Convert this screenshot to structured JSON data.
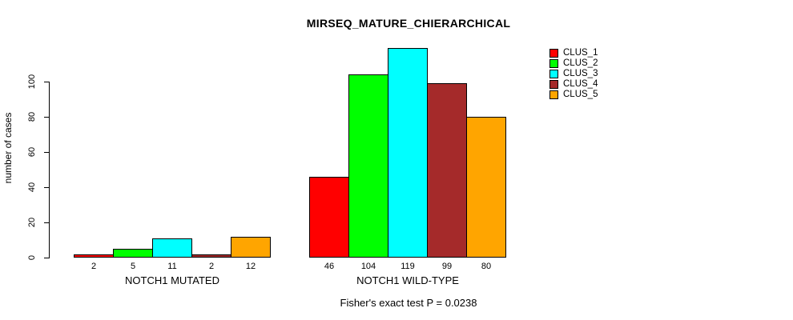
{
  "title": "MIRSEQ_MATURE_CHIERARCHICAL",
  "y_axis_label": "number of cases",
  "caption": "Fisher's exact test P = 0.0238",
  "legend": {
    "entries": [
      {
        "label": "CLUS_1",
        "color": "#FF0000"
      },
      {
        "label": "CLUS_2",
        "color": "#00FF00"
      },
      {
        "label": "CLUS_3",
        "color": "#00FFFF"
      },
      {
        "label": "CLUS_4",
        "color": "#A52A2A"
      },
      {
        "label": "CLUS_5",
        "color": "#FFA500"
      }
    ]
  },
  "chart_data": {
    "type": "bar",
    "title": "MIRSEQ_MATURE_CHIERARCHICAL",
    "xlabel": "",
    "ylabel": "number of cases",
    "categories": [
      "NOTCH1 MUTATED",
      "NOTCH1 WILD-TYPE"
    ],
    "series": [
      {
        "name": "CLUS_1",
        "color": "#FF0000",
        "values": [
          2,
          46
        ]
      },
      {
        "name": "CLUS_2",
        "color": "#00FF00",
        "values": [
          5,
          104
        ]
      },
      {
        "name": "CLUS_3",
        "color": "#00FFFF",
        "values": [
          11,
          119
        ]
      },
      {
        "name": "CLUS_4",
        "color": "#A52A2A",
        "values": [
          2,
          99
        ]
      },
      {
        "name": "CLUS_5",
        "color": "#FFA500",
        "values": [
          12,
          80
        ]
      }
    ],
    "bar_value_labels": {
      "NOTCH1 MUTATED": [
        2,
        5,
        11,
        2,
        12
      ],
      "NOTCH1 WILD-TYPE": [
        46,
        104,
        119,
        99,
        80
      ]
    },
    "yticks": [
      0,
      20,
      40,
      60,
      80,
      100
    ],
    "ylim": [
      0,
      100
    ],
    "grid": false,
    "legend_position": "top-right",
    "annotation": "Fisher's exact test P = 0.0238"
  }
}
